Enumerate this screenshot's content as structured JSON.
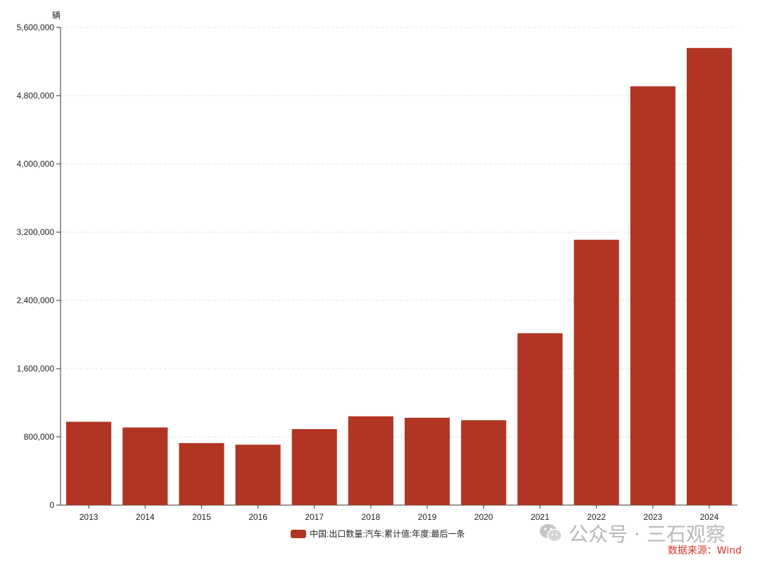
{
  "chart_data": {
    "type": "bar",
    "ylabel": "辆",
    "categories": [
      "2013",
      "2014",
      "2015",
      "2016",
      "2017",
      "2018",
      "2019",
      "2020",
      "2021",
      "2022",
      "2023",
      "2024"
    ],
    "series": [
      {
        "name": "中国:出口数量:汽车:累计值:年度:最后一条",
        "color": "#b03522",
        "values": [
          977000,
          910000,
          727000,
          708000,
          891000,
          1041000,
          1024000,
          995000,
          2015000,
          3111000,
          4910000,
          5359000
        ]
      }
    ],
    "ylim": [
      0,
      5600000
    ],
    "yticks": [
      0,
      800000,
      1600000,
      2400000,
      3200000,
      4000000,
      4800000,
      5600000
    ],
    "ytick_labels": [
      "0",
      "800,000",
      "1,600,000",
      "2,400,000",
      "3,200,000",
      "4,000,000",
      "4,800,000",
      "5,600,000"
    ],
    "grid": true,
    "legend_position": "bottom"
  },
  "watermark": {
    "text": "公众号 · 三石观察"
  },
  "source": {
    "text": "数据来源：Wind"
  }
}
